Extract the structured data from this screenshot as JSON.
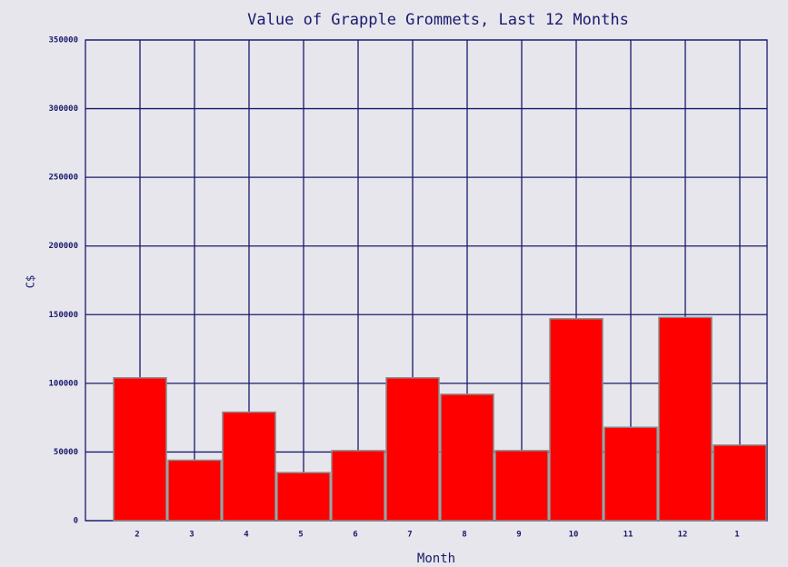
{
  "chart_data": {
    "type": "bar",
    "title": "Value of Grapple Grommets, Last 12 Months",
    "x_label": "Month",
    "y_label": "C$",
    "categories": [
      "2",
      "3",
      "4",
      "5",
      "6",
      "7",
      "8",
      "9",
      "10",
      "11",
      "12",
      "1"
    ],
    "values": [
      104000,
      44000,
      79000,
      35000,
      51000,
      104000,
      92000,
      51000,
      147000,
      68000,
      148000,
      55000
    ],
    "color": "#ff0000",
    "ylim": [
      0,
      350000
    ],
    "yticks": [
      0,
      50000,
      100000,
      150000,
      200000,
      250000,
      300000,
      350000
    ],
    "grid": true
  }
}
